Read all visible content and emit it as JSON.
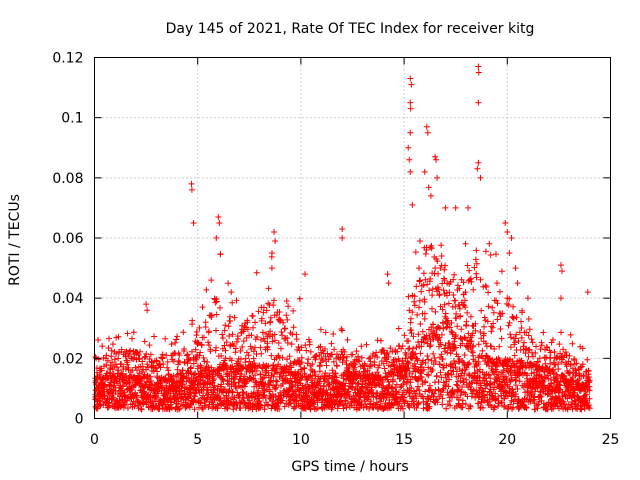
{
  "chart_data": {
    "type": "scatter",
    "title": "Day 145 of 2021, Rate Of TEC Index for receiver kitg",
    "xlabel": "GPS time / hours",
    "ylabel": "ROTI / TECUs",
    "xlim": [
      0,
      25
    ],
    "ylim": [
      0,
      0.12
    ],
    "xticks": [
      0,
      5,
      10,
      15,
      20,
      25
    ],
    "xtick_labels": [
      "0",
      "5",
      "10",
      "15",
      "20",
      "25"
    ],
    "yticks": [
      0,
      0.02,
      0.04,
      0.06,
      0.08,
      0.1,
      0.12
    ],
    "ytick_labels": [
      "0",
      "0.02",
      "0.04",
      "0.06",
      "0.08",
      "0.1",
      "0.12"
    ],
    "grid": true,
    "marker": "+",
    "color": "#ff0000",
    "data_range_hours": [
      0,
      24
    ],
    "typical_level": [
      {
        "x": 0,
        "y": 0.012
      },
      {
        "x": 2,
        "y": 0.013
      },
      {
        "x": 4,
        "y": 0.012
      },
      {
        "x": 5,
        "y": 0.014
      },
      {
        "x": 6,
        "y": 0.016
      },
      {
        "x": 8,
        "y": 0.016
      },
      {
        "x": 9,
        "y": 0.016
      },
      {
        "x": 10,
        "y": 0.013
      },
      {
        "x": 12,
        "y": 0.013
      },
      {
        "x": 14,
        "y": 0.013
      },
      {
        "x": 15,
        "y": 0.016
      },
      {
        "x": 16,
        "y": 0.026
      },
      {
        "x": 17,
        "y": 0.03
      },
      {
        "x": 18,
        "y": 0.024
      },
      {
        "x": 19,
        "y": 0.018
      },
      {
        "x": 20,
        "y": 0.018
      },
      {
        "x": 21,
        "y": 0.017
      },
      {
        "x": 22,
        "y": 0.015
      },
      {
        "x": 23,
        "y": 0.012
      },
      {
        "x": 24,
        "y": 0.01
      }
    ],
    "upper_envelope": [
      {
        "x": 0,
        "y": 0.026
      },
      {
        "x": 1,
        "y": 0.03
      },
      {
        "x": 2.5,
        "y": 0.028
      },
      {
        "x": 3.5,
        "y": 0.028
      },
      {
        "x": 4.5,
        "y": 0.03
      },
      {
        "x": 5.5,
        "y": 0.05
      },
      {
        "x": 6,
        "y": 0.06
      },
      {
        "x": 7,
        "y": 0.04
      },
      {
        "x": 8.6,
        "y": 0.057
      },
      {
        "x": 9,
        "y": 0.045
      },
      {
        "x": 10,
        "y": 0.04
      },
      {
        "x": 11,
        "y": 0.03
      },
      {
        "x": 12,
        "y": 0.03
      },
      {
        "x": 13,
        "y": 0.025
      },
      {
        "x": 14,
        "y": 0.03
      },
      {
        "x": 15,
        "y": 0.03
      },
      {
        "x": 15.5,
        "y": 0.06
      },
      {
        "x": 16,
        "y": 0.08
      },
      {
        "x": 16.5,
        "y": 0.085
      },
      {
        "x": 17,
        "y": 0.075
      },
      {
        "x": 18,
        "y": 0.06
      },
      {
        "x": 18.6,
        "y": 0.08
      },
      {
        "x": 19,
        "y": 0.06
      },
      {
        "x": 20,
        "y": 0.06
      },
      {
        "x": 20.5,
        "y": 0.05
      },
      {
        "x": 21,
        "y": 0.035
      },
      {
        "x": 22,
        "y": 0.03
      },
      {
        "x": 23,
        "y": 0.03
      },
      {
        "x": 24,
        "y": 0.02
      }
    ],
    "notable_points": [
      {
        "x": 2.5,
        "y": 0.038
      },
      {
        "x": 2.55,
        "y": 0.036
      },
      {
        "x": 4.7,
        "y": 0.078
      },
      {
        "x": 4.72,
        "y": 0.076
      },
      {
        "x": 4.8,
        "y": 0.065
      },
      {
        "x": 6.0,
        "y": 0.067
      },
      {
        "x": 6.05,
        "y": 0.065
      },
      {
        "x": 5.9,
        "y": 0.06
      },
      {
        "x": 8.7,
        "y": 0.062
      },
      {
        "x": 8.75,
        "y": 0.059
      },
      {
        "x": 8.6,
        "y": 0.055
      },
      {
        "x": 10.2,
        "y": 0.048
      },
      {
        "x": 12.0,
        "y": 0.063
      },
      {
        "x": 12.0,
        "y": 0.06
      },
      {
        "x": 14.2,
        "y": 0.048
      },
      {
        "x": 14.25,
        "y": 0.045
      },
      {
        "x": 15.3,
        "y": 0.113
      },
      {
        "x": 15.35,
        "y": 0.111
      },
      {
        "x": 15.3,
        "y": 0.105
      },
      {
        "x": 15.32,
        "y": 0.103
      },
      {
        "x": 15.3,
        "y": 0.095
      },
      {
        "x": 15.2,
        "y": 0.09
      },
      {
        "x": 15.25,
        "y": 0.086
      },
      {
        "x": 15.3,
        "y": 0.082
      },
      {
        "x": 15.4,
        "y": 0.071
      },
      {
        "x": 16.1,
        "y": 0.097
      },
      {
        "x": 16.15,
        "y": 0.095
      },
      {
        "x": 16.0,
        "y": 0.082
      },
      {
        "x": 16.5,
        "y": 0.087
      },
      {
        "x": 16.55,
        "y": 0.086
      },
      {
        "x": 16.6,
        "y": 0.08
      },
      {
        "x": 16.3,
        "y": 0.074
      },
      {
        "x": 17.0,
        "y": 0.07
      },
      {
        "x": 17.5,
        "y": 0.07
      },
      {
        "x": 18.1,
        "y": 0.07
      },
      {
        "x": 18.6,
        "y": 0.117
      },
      {
        "x": 18.62,
        "y": 0.115
      },
      {
        "x": 18.6,
        "y": 0.105
      },
      {
        "x": 18.6,
        "y": 0.085
      },
      {
        "x": 18.7,
        "y": 0.08
      },
      {
        "x": 18.55,
        "y": 0.083
      },
      {
        "x": 19.9,
        "y": 0.065
      },
      {
        "x": 20.0,
        "y": 0.062
      },
      {
        "x": 20.2,
        "y": 0.06
      },
      {
        "x": 20.1,
        "y": 0.055
      },
      {
        "x": 20.4,
        "y": 0.05
      },
      {
        "x": 20.5,
        "y": 0.045
      },
      {
        "x": 22.6,
        "y": 0.051
      },
      {
        "x": 22.65,
        "y": 0.049
      },
      {
        "x": 22.6,
        "y": 0.04
      },
      {
        "x": 23.9,
        "y": 0.042
      },
      {
        "x": 21.0,
        "y": 0.04
      },
      {
        "x": 19.5,
        "y": 0.045
      }
    ],
    "min_level": 0.003
  }
}
